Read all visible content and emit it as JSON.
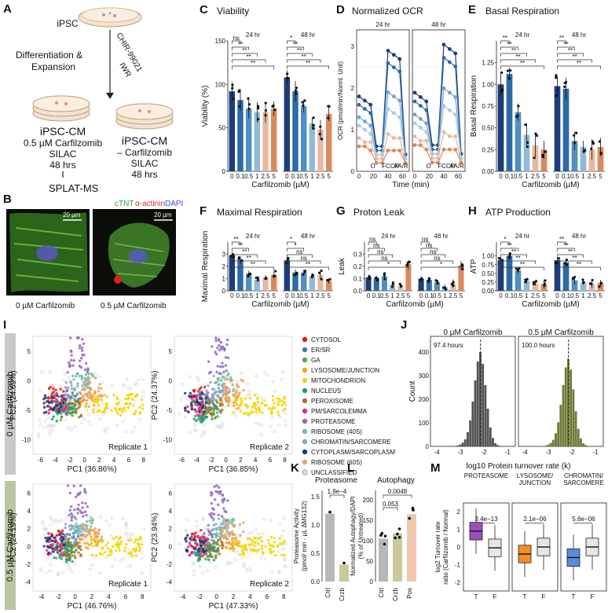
{
  "panels": {
    "A": {
      "label": "A",
      "ipsc": "iPSC",
      "chir": "CHIR-99021",
      "iwr": "IWR",
      "diff": "Differentiation &",
      "expansion": "Expansion",
      "cm_left": "iPSC-CM",
      "cond_left": [
        "0.5 µM Carfilzomib",
        "SILAC",
        "48 hrs"
      ],
      "cm_right": "iPSC-CM",
      "cond_right": [
        "– Carfilzomib",
        "SILAC",
        "48 hrs"
      ],
      "out": "SPLAT-MS"
    },
    "B": {
      "label": "B",
      "stain_ctnt": "cTNT",
      "stain_actinin": "α-actinin",
      "stain_dapi": "DAPI",
      "scale": "20 µm",
      "cap_left": "0 µM Carfilzomib",
      "cap_right": "0.5 µM Carfilzomib"
    },
    "I": {
      "label": "I",
      "row_top": "0 µM Carfilzomib",
      "row_bottom": "0.5 µM Carfilzomib",
      "plots": [
        {
          "xlab": "PC1 (36.86%)",
          "ylab": "PC2 (24.69%)",
          "rep": "Replicate 1"
        },
        {
          "xlab": "PC1 (36.85%)",
          "ylab": "PC2 (24.37%)",
          "rep": "Replicate 2"
        },
        {
          "xlab": "PC1 (46.76%)",
          "ylab": "PC2 (24.19%)",
          "rep": "Replicate 1"
        },
        {
          "xlab": "PC1 (47.33%)",
          "ylab": "PC2 (23.94%)",
          "rep": "Replicate 2"
        }
      ],
      "xticks_top": [
        "-6",
        "-4",
        "-2",
        "0",
        "2",
        "4",
        "6",
        "8"
      ],
      "yticks_top": [
        "-10",
        "-5",
        "0",
        "5"
      ],
      "xticks_bot": [
        "-4",
        "-2",
        "0",
        "2",
        "4",
        "6",
        "8"
      ],
      "yticks_bot": [
        "-4",
        "-2",
        "0",
        "2",
        "4",
        "6"
      ],
      "legend": [
        {
          "name": "CYTOSOL",
          "color": "#e41a1c"
        },
        {
          "name": "ER/SR",
          "color": "#377eb8"
        },
        {
          "name": "GA",
          "color": "#4daf4a"
        },
        {
          "name": "LYSOSOME/JUNCTION",
          "color": "#ff9f1c"
        },
        {
          "name": "MITOCHONDRION",
          "color": "#f2d600"
        },
        {
          "name": "NUCLEUS",
          "color": "#1b9e77"
        },
        {
          "name": "PEROXISOME",
          "color": "#a6761d"
        },
        {
          "name": "PM/SARCOLEMMA",
          "color": "#e7298a"
        },
        {
          "name": "PROTEASOME",
          "color": "#9467bd"
        },
        {
          "name": "RIBOSOME (40S)",
          "color": "#66c2a5"
        },
        {
          "name": "CHROMATIN/SARCOMERE",
          "color": "#8da0cb"
        },
        {
          "name": "CYTOPLASM/SARCOPLASM",
          "color": "#1f3b73"
        },
        {
          "name": "RIBOSOME (60S)",
          "color": "#e9a36b"
        },
        {
          "name": "UNCLASSIFIED",
          "color": "#d9d9d9"
        }
      ]
    },
    "J": {
      "label": "J",
      "left_title": "0 µM Carfilzomib",
      "right_title": "0.5 µM Carfilzomib",
      "left_note": "97.4 hours",
      "right_note": "100.0 hours",
      "ylab": "Count",
      "xlab": "log10 Protein turnover rate (k)",
      "yticks": [
        "0",
        "100",
        "200",
        "300",
        "400"
      ],
      "xticks": [
        "-4",
        "-3",
        "-2",
        "-1"
      ]
    },
    "K": {
      "label": "K",
      "title": "Proteasome",
      "ylab": "Proteasome Activity",
      "ylab2": "(pmol/ min · µL ΔMG132)",
      "pval": "1.9e−4",
      "cats": [
        "Ctrl",
        "Crzb"
      ],
      "yticks": [
        "0.0",
        "0.5",
        "1.0",
        "1.5"
      ]
    },
    "L": {
      "label": "L",
      "title": "Autophagy",
      "ylab": "Normalized Autophagy/DAPI",
      "ylab2": "(% of Untreated)",
      "p1": "0.053",
      "p2": "0.0048",
      "cats": [
        "Ctrl",
        "Crzb",
        "Pos"
      ],
      "yticks": [
        "0",
        "50",
        "100",
        "150",
        "200"
      ]
    },
    "M": {
      "label": "M",
      "ylab": "log2 Turnover rate",
      "ylab2": "ratio (Carfilzomib / Normal)",
      "groups": [
        {
          "title1": "PROTEASOME",
          "title2": "",
          "p": "3.4e−13",
          "color": "#9b4fbd"
        },
        {
          "title1": "LYSOSOME/",
          "title2": "JUNCTION",
          "p": "2.1e−06",
          "color": "#f28e2b"
        },
        {
          "title1": "CHROMATIN/",
          "title2": "SARCOMERE",
          "p": "5.6e−06",
          "color": "#5b8bd9"
        }
      ],
      "cats": [
        "T",
        "F"
      ],
      "yticks": [
        "-2",
        "-1",
        "0",
        "1",
        "2"
      ]
    }
  },
  "chart_data": [
    {
      "type": "bar",
      "panel": "C",
      "title": "Viability",
      "ylabel": "Viability (%)",
      "xlabel": "Carfilzomib (µM)",
      "categories": [
        "0",
        "0.1",
        "0.5",
        "1",
        "2.5",
        "5"
      ],
      "facets": [
        "24 hr",
        "48 hr"
      ],
      "ylim": [
        0,
        150
      ],
      "yticks": [
        "0",
        "50",
        "100",
        "150"
      ],
      "series": [
        {
          "name": "24 hr",
          "values": [
            92,
            82,
            72,
            68,
            68,
            72
          ]
        },
        {
          "name": "48 hr",
          "values": [
            108,
            92,
            75,
            55,
            48,
            66
          ]
        }
      ],
      "sig_24": [
        "ns",
        "ns",
        "**",
        "**",
        "**",
        "**"
      ],
      "sig_48": [
        "ns",
        "*",
        "**",
        "**",
        "**",
        "**"
      ]
    },
    {
      "type": "line",
      "panel": "D",
      "title": "Normalized OCR",
      "ylabel": "OCR (pmol/min/Norml. Unit)",
      "xlabel": "Time (min)",
      "facets": [
        "24 hr",
        "48 hr"
      ],
      "x": [
        0,
        8,
        16,
        24,
        32,
        40,
        48,
        56,
        64
      ],
      "ylim": [
        0,
        3.4
      ],
      "yticks": [
        "0",
        "1",
        "2",
        "3"
      ],
      "xticks": [
        "0",
        "20",
        "40",
        "60"
      ],
      "injections": [
        "O",
        "FCCP",
        "AA/R"
      ],
      "series": [
        {
          "name": "0",
          "values": [
            1.8,
            1.7,
            1.6,
            0.6,
            0.6,
            2.9,
            2.8,
            2.7,
            0.4
          ]
        },
        {
          "name": "0.1",
          "values": [
            1.6,
            1.5,
            1.4,
            0.5,
            0.5,
            2.6,
            2.5,
            2.4,
            0.3
          ]
        },
        {
          "name": "0.5",
          "values": [
            1.3,
            1.2,
            1.1,
            0.4,
            0.4,
            1.9,
            1.8,
            1.7,
            0.3
          ]
        },
        {
          "name": "1",
          "values": [
            1.1,
            1.0,
            0.9,
            0.4,
            0.4,
            1.5,
            1.4,
            1.3,
            0.3
          ]
        },
        {
          "name": "2.5",
          "values": [
            0.8,
            0.7,
            0.7,
            0.3,
            0.3,
            0.9,
            0.8,
            0.8,
            0.2
          ]
        },
        {
          "name": "5",
          "values": [
            0.6,
            0.6,
            0.5,
            0.2,
            0.2,
            0.5,
            0.5,
            0.5,
            0.2
          ]
        }
      ]
    },
    {
      "type": "bar",
      "panel": "E",
      "title": "Basal Respiration",
      "ylabel": "Basal Respiration",
      "xlabel": "Carfilzomib (µM)",
      "categories": [
        "0",
        "0.1",
        "0.5",
        "1",
        "2.5",
        "5"
      ],
      "facets": [
        "24 hr",
        "48 hr"
      ],
      "ylim": [
        0,
        1.5
      ],
      "yticks": [
        "0.00",
        "0.25",
        "0.50",
        "0.75",
        "1.00",
        "1.25"
      ],
      "series": [
        {
          "name": "24 hr",
          "values": [
            1.0,
            1.12,
            0.68,
            0.42,
            0.3,
            0.25
          ]
        },
        {
          "name": "48 hr",
          "values": [
            0.98,
            0.95,
            0.35,
            0.28,
            0.25,
            0.28
          ]
        }
      ],
      "sig_24": [
        "ns",
        "**",
        "**",
        "**",
        "**",
        "**"
      ],
      "sig_48": [
        "ns",
        "**",
        "**",
        "**",
        "**",
        "**"
      ]
    },
    {
      "type": "bar",
      "panel": "F",
      "title": "Maximal Respiration",
      "ylabel": "Maximal Respiration",
      "xlabel": "Carfilzomib (µM)",
      "categories": [
        "0",
        "0.1",
        "0.5",
        "1",
        "2.5",
        "5"
      ],
      "facets": [
        "24 hr",
        "48 hr"
      ],
      "ylim": [
        0,
        4
      ],
      "yticks": [
        "0",
        "1",
        "2",
        "3"
      ],
      "series": [
        {
          "name": "24 hr",
          "values": [
            2.9,
            2.5,
            1.4,
            0.9,
            1.1,
            1.3
          ]
        },
        {
          "name": "48 hr",
          "values": [
            2.5,
            1.5,
            1.5,
            1.2,
            1.3,
            0.8
          ]
        }
      ],
      "sig_24": [
        "ns",
        "**",
        "**",
        "**",
        "**",
        "**"
      ],
      "sig_48": [
        "ns",
        "*",
        "*",
        "ns",
        "ns",
        "**"
      ]
    },
    {
      "type": "bar",
      "panel": "G",
      "title": "Proton Leak",
      "ylabel": "Leak",
      "xlabel": "Carfilzomib (µM)",
      "categories": [
        "0",
        "0.1",
        "0.5",
        "1",
        "2.5",
        "5"
      ],
      "facets": [
        "24 hr",
        "48 hr"
      ],
      "ylim": [
        0,
        0.4
      ],
      "yticks": [
        "0.0",
        "0.1",
        "0.2",
        "0.3"
      ],
      "series": [
        {
          "name": "24 hr",
          "values": [
            0.11,
            0.1,
            0.12,
            0.05,
            0.04,
            0.22
          ]
        },
        {
          "name": "48 hr",
          "values": [
            0.1,
            0.09,
            0.07,
            0.03,
            0.06,
            0.21
          ]
        }
      ],
      "sig_24": [
        "ns",
        "ns",
        "ns",
        "ns",
        "ns",
        "*"
      ],
      "sig_48": [
        "ns",
        "ns",
        "ns",
        "ns",
        "ns",
        "*"
      ]
    },
    {
      "type": "bar",
      "panel": "H",
      "title": "ATP Production",
      "ylabel": "ATP",
      "xlabel": "Carfilzomib (µM)",
      "categories": [
        "0",
        "0.1",
        "0.5",
        "1",
        "2.5",
        "5"
      ],
      "facets": [
        "24 hr",
        "48 hr"
      ],
      "ylim": [
        0,
        1.4
      ],
      "yticks": [
        "0.00",
        "0.25",
        "0.50",
        "0.75",
        "1.00"
      ],
      "series": [
        {
          "name": "24 hr",
          "values": [
            0.88,
            1.0,
            0.58,
            0.28,
            0.22,
            0.2
          ]
        },
        {
          "name": "48 hr",
          "values": [
            0.88,
            0.82,
            0.3,
            0.24,
            0.2,
            0.22
          ]
        }
      ],
      "sig_24": [
        "ns",
        "*",
        "**",
        "**",
        "**",
        "**"
      ],
      "sig_48": [
        "ns",
        "**",
        "**",
        "**",
        "**",
        "**"
      ]
    }
  ]
}
